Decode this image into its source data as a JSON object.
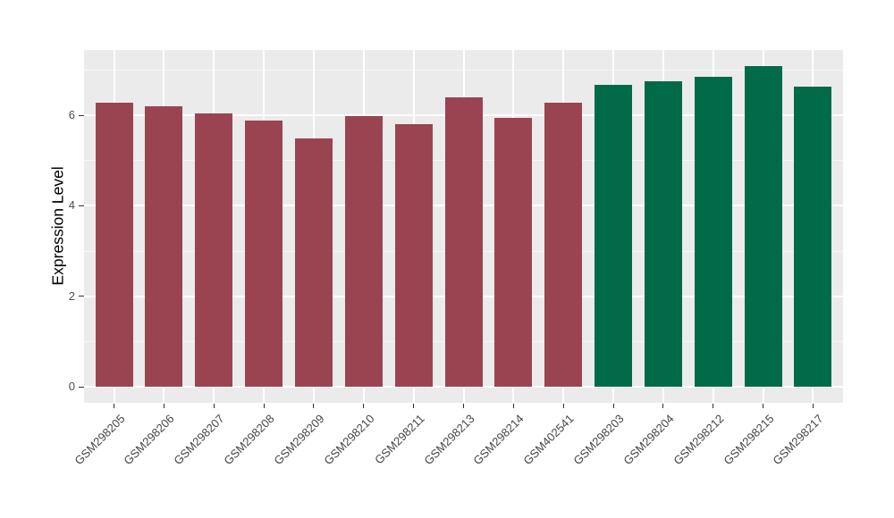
{
  "figure": {
    "background": "#FFFFFF"
  },
  "chart_data": {
    "type": "bar",
    "title": "",
    "xlabel": "",
    "ylabel": "Expression Level",
    "categories": [
      "GSM298205",
      "GSM298206",
      "GSM298207",
      "GSM298208",
      "GSM298209",
      "GSM298210",
      "GSM298211",
      "GSM298213",
      "GSM298214",
      "GSM402541",
      "GSM298203",
      "GSM298204",
      "GSM298212",
      "GSM298215",
      "GSM298217"
    ],
    "values": [
      6.28,
      6.2,
      6.05,
      5.88,
      5.49,
      5.98,
      5.8,
      6.4,
      5.95,
      6.28,
      6.68,
      6.76,
      6.84,
      7.08,
      6.64
    ],
    "bar_colors": [
      "#9A4351",
      "#9A4351",
      "#9A4351",
      "#9A4351",
      "#9A4351",
      "#9A4351",
      "#9A4351",
      "#9A4351",
      "#9A4351",
      "#9A4351",
      "#016A48",
      "#016A48",
      "#016A48",
      "#016A48",
      "#016A48"
    ],
    "group_colors": {
      "left_group": "#9A4351",
      "right_group": "#016A48"
    },
    "yticks": [
      0,
      2,
      4,
      6
    ],
    "yticks_minor": [
      1,
      3,
      5,
      7
    ],
    "ylim": [
      0,
      7.43
    ],
    "grid": true,
    "legend": "none",
    "panel_background": "#EBEBEB",
    "gridline_color": "#FFFFFF",
    "tick_label_color": "#4D4D4D",
    "axis_title_color": "#000000"
  }
}
